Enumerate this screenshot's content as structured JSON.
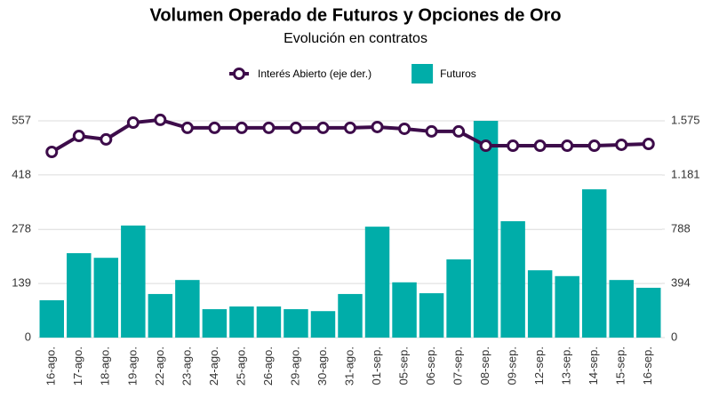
{
  "chart_data": {
    "type": "bar_line",
    "title": "Volumen Operado de Futuros y Opciones de Oro",
    "subtitle": "Evolución en contratos",
    "categories": [
      "16-ago.",
      "17-ago.",
      "18-ago.",
      "19-ago.",
      "22-ago.",
      "23-ago.",
      "24-ago.",
      "25-ago.",
      "26-ago.",
      "29-ago.",
      "30-ago.",
      "31-ago.",
      "01-sep.",
      "05-sep.",
      "06-sep.",
      "07-sep.",
      "08-sep.",
      "09-sep.",
      "12-sep.",
      "13-sep.",
      "14-sep.",
      "15-sep.",
      "16-sep."
    ],
    "series": [
      {
        "name": "Interés Abierto (eje der.)",
        "type": "line",
        "axis": "y2",
        "color": "#3d0c4a",
        "values": [
          1349,
          1465,
          1440,
          1562,
          1582,
          1524,
          1524,
          1524,
          1524,
          1524,
          1524,
          1524,
          1530,
          1517,
          1498,
          1498,
          1394,
          1394,
          1394,
          1394,
          1394,
          1401,
          1407
        ]
      },
      {
        "name": "Futuros",
        "type": "bar",
        "color": "#00ada9",
        "values": [
          96,
          217,
          205,
          288,
          112,
          148,
          73,
          80,
          80,
          73,
          68,
          112,
          285,
          142,
          114,
          201,
          557,
          299,
          173,
          158,
          381,
          148,
          128
        ]
      }
    ],
    "ylim": [
      0,
      557
    ],
    "yticks": [
      0,
      139,
      278,
      418,
      557
    ],
    "y2lim": [
      0,
      1575
    ],
    "y2ticks": [
      0,
      394,
      788,
      {
        "value": 1181,
        "label": "1.181"
      },
      {
        "value": 1575,
        "label": "1.575"
      }
    ],
    "grid": true,
    "legend": "top"
  }
}
